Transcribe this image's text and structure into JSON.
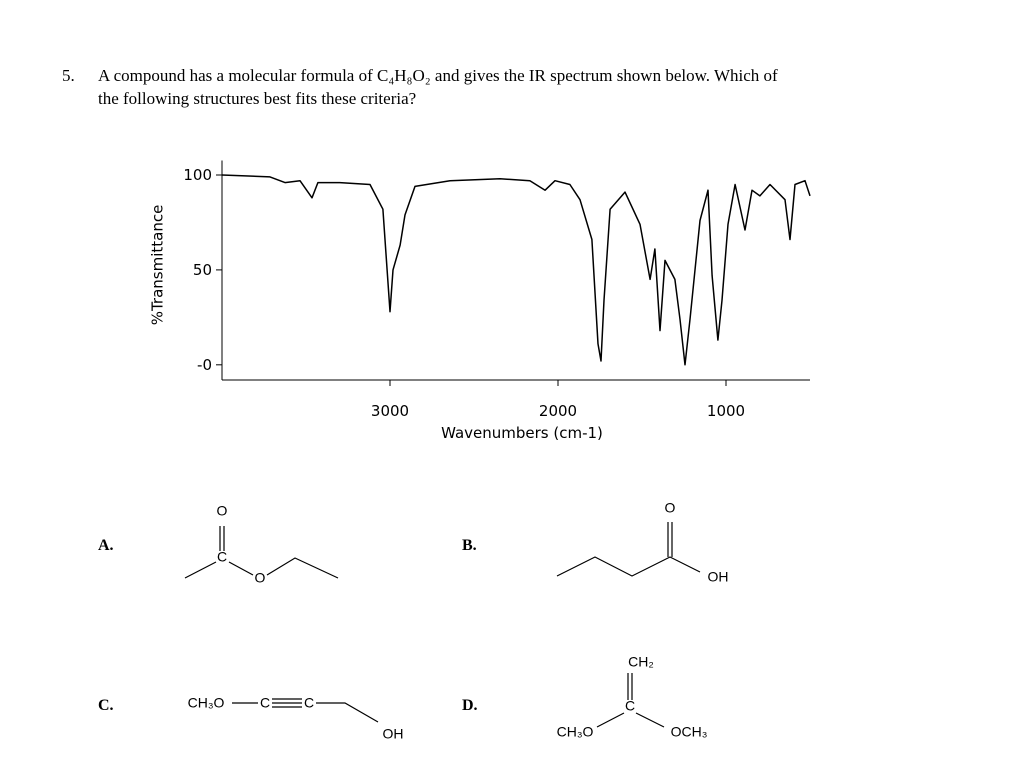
{
  "question": {
    "number": "5.",
    "lines": [
      "A compound has a molecular formula of C₄H₈O₂ and gives the IR spectrum shown below. Which of",
      "the following structures best fits these criteria?"
    ]
  },
  "chart_data": {
    "type": "line",
    "x_label": "Wavenumbers (cm-1)",
    "y_label": "%Transmittance",
    "xlim": [
      4000,
      500
    ],
    "ylim": [
      -8,
      105
    ],
    "xticks": [
      3000,
      2000,
      1000
    ],
    "yticks": [
      100,
      50,
      {
        "value": 0,
        "label": "-0"
      }
    ],
    "series": [
      {
        "color": "#000000",
        "x": [
          4000,
          3714,
          3625,
          3536,
          3464,
          3429,
          3298,
          3119,
          3042,
          3000,
          2982,
          2940,
          2911,
          2851,
          2643,
          2345,
          2167,
          2077,
          2018,
          1929,
          1869,
          1798,
          1762,
          1744,
          1726,
          1690,
          1601,
          1512,
          1452,
          1423,
          1393,
          1363,
          1304,
          1274,
          1244,
          1214,
          1155,
          1107,
          1083,
          1048,
          1024,
          988,
          946,
          887,
          845,
          798,
          738,
          649,
          619,
          589,
          530,
          500
        ],
        "values": [
          100,
          99,
          96,
          97,
          88,
          96,
          96,
          95,
          82,
          28,
          50,
          63,
          79,
          94,
          97,
          98,
          97,
          92,
          97,
          95,
          87,
          66,
          11,
          2,
          34,
          82,
          91,
          74,
          45,
          61,
          18,
          55,
          45,
          24,
          0,
          24,
          76,
          92,
          47,
          13,
          34,
          74,
          95,
          71,
          92,
          89,
          95,
          87,
          66,
          95,
          97,
          89
        ]
      }
    ]
  },
  "choices": [
    {
      "label": "A.",
      "atoms": [
        "O",
        "C",
        "O"
      ]
    },
    {
      "label": "B.",
      "atoms": [
        "O",
        "OH"
      ]
    },
    {
      "label": "C.",
      "atoms": [
        "CH₃O",
        "C",
        "C",
        "OH"
      ]
    },
    {
      "label": "D.",
      "atoms": [
        "CH₂",
        "C",
        "CH₃O",
        "OCH₃"
      ]
    }
  ]
}
